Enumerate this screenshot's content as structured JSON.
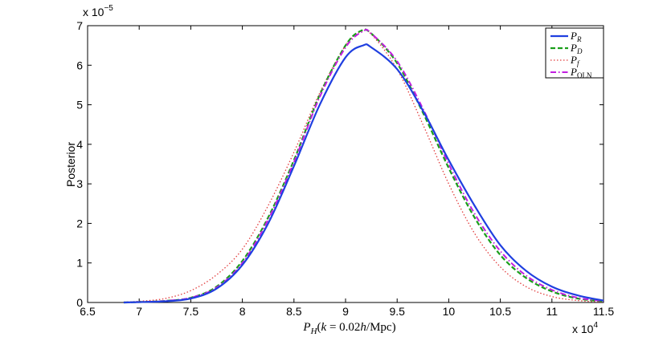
{
  "chart_data": {
    "type": "line",
    "title": "",
    "xlabel": "P_H(k = 0.02h/Mpc)",
    "ylabel": "Posterior",
    "x_multiplier": "x 10^4",
    "y_multiplier": "x 10^-5",
    "xlim": [
      6.5,
      11.5
    ],
    "ylim": [
      0,
      7
    ],
    "x_ticks": [
      "6.5",
      "7",
      "7.5",
      "8",
      "8.5",
      "9",
      "9.5",
      "10",
      "10.5",
      "11",
      "11.5"
    ],
    "y_ticks": [
      "0",
      "1",
      "2",
      "3",
      "4",
      "5",
      "6",
      "7"
    ],
    "grid": false,
    "legend_position": "top-right",
    "series": [
      {
        "name": "P_R",
        "color": "#1f3fe0",
        "style": "solid",
        "x": [
          6.85,
          7.0,
          7.25,
          7.5,
          7.75,
          8.0,
          8.25,
          8.5,
          8.75,
          9.0,
          9.17,
          9.25,
          9.5,
          9.75,
          10.0,
          10.25,
          10.5,
          10.75,
          11.0,
          11.25,
          11.5
        ],
        "y": [
          0.0,
          0.01,
          0.03,
          0.1,
          0.35,
          0.95,
          2.0,
          3.45,
          5.0,
          6.2,
          6.5,
          6.45,
          5.9,
          4.85,
          3.6,
          2.45,
          1.45,
          0.8,
          0.4,
          0.18,
          0.05
        ]
      },
      {
        "name": "P_D",
        "color": "#1a9e1a",
        "style": "dashed",
        "x": [
          6.85,
          7.0,
          7.25,
          7.5,
          7.75,
          8.0,
          8.25,
          8.5,
          8.75,
          9.0,
          9.15,
          9.25,
          9.5,
          9.75,
          10.0,
          10.25,
          10.5,
          10.75,
          11.0,
          11.25,
          11.5
        ],
        "y": [
          0.0,
          0.01,
          0.04,
          0.12,
          0.4,
          1.05,
          2.15,
          3.6,
          5.25,
          6.5,
          6.87,
          6.8,
          6.05,
          4.8,
          3.4,
          2.15,
          1.2,
          0.62,
          0.28,
          0.1,
          0.03
        ]
      },
      {
        "name": "P_f",
        "color": "#e23c3c",
        "style": "dotted",
        "x": [
          6.85,
          7.0,
          7.25,
          7.5,
          7.75,
          8.0,
          8.25,
          8.5,
          8.75,
          9.0,
          9.15,
          9.25,
          9.5,
          9.75,
          10.0,
          10.25,
          10.5,
          10.75,
          11.0,
          11.25,
          11.5
        ],
        "y": [
          0.01,
          0.03,
          0.1,
          0.3,
          0.7,
          1.35,
          2.45,
          3.8,
          5.3,
          6.5,
          6.85,
          6.78,
          5.9,
          4.5,
          3.0,
          1.75,
          0.9,
          0.4,
          0.15,
          0.05,
          0.01
        ]
      },
      {
        "name": "P_OLN",
        "color": "#c21fe0",
        "style": "dashdot",
        "x": [
          6.85,
          7.0,
          7.25,
          7.5,
          7.75,
          8.0,
          8.25,
          8.5,
          8.75,
          9.0,
          9.17,
          9.25,
          9.5,
          9.75,
          10.0,
          10.25,
          10.5,
          10.75,
          11.0,
          11.25,
          11.5
        ],
        "y": [
          0.0,
          0.01,
          0.04,
          0.12,
          0.38,
          1.0,
          2.1,
          3.55,
          5.2,
          6.45,
          6.86,
          6.8,
          6.1,
          4.9,
          3.5,
          2.25,
          1.3,
          0.68,
          0.32,
          0.12,
          0.04
        ]
      }
    ]
  }
}
